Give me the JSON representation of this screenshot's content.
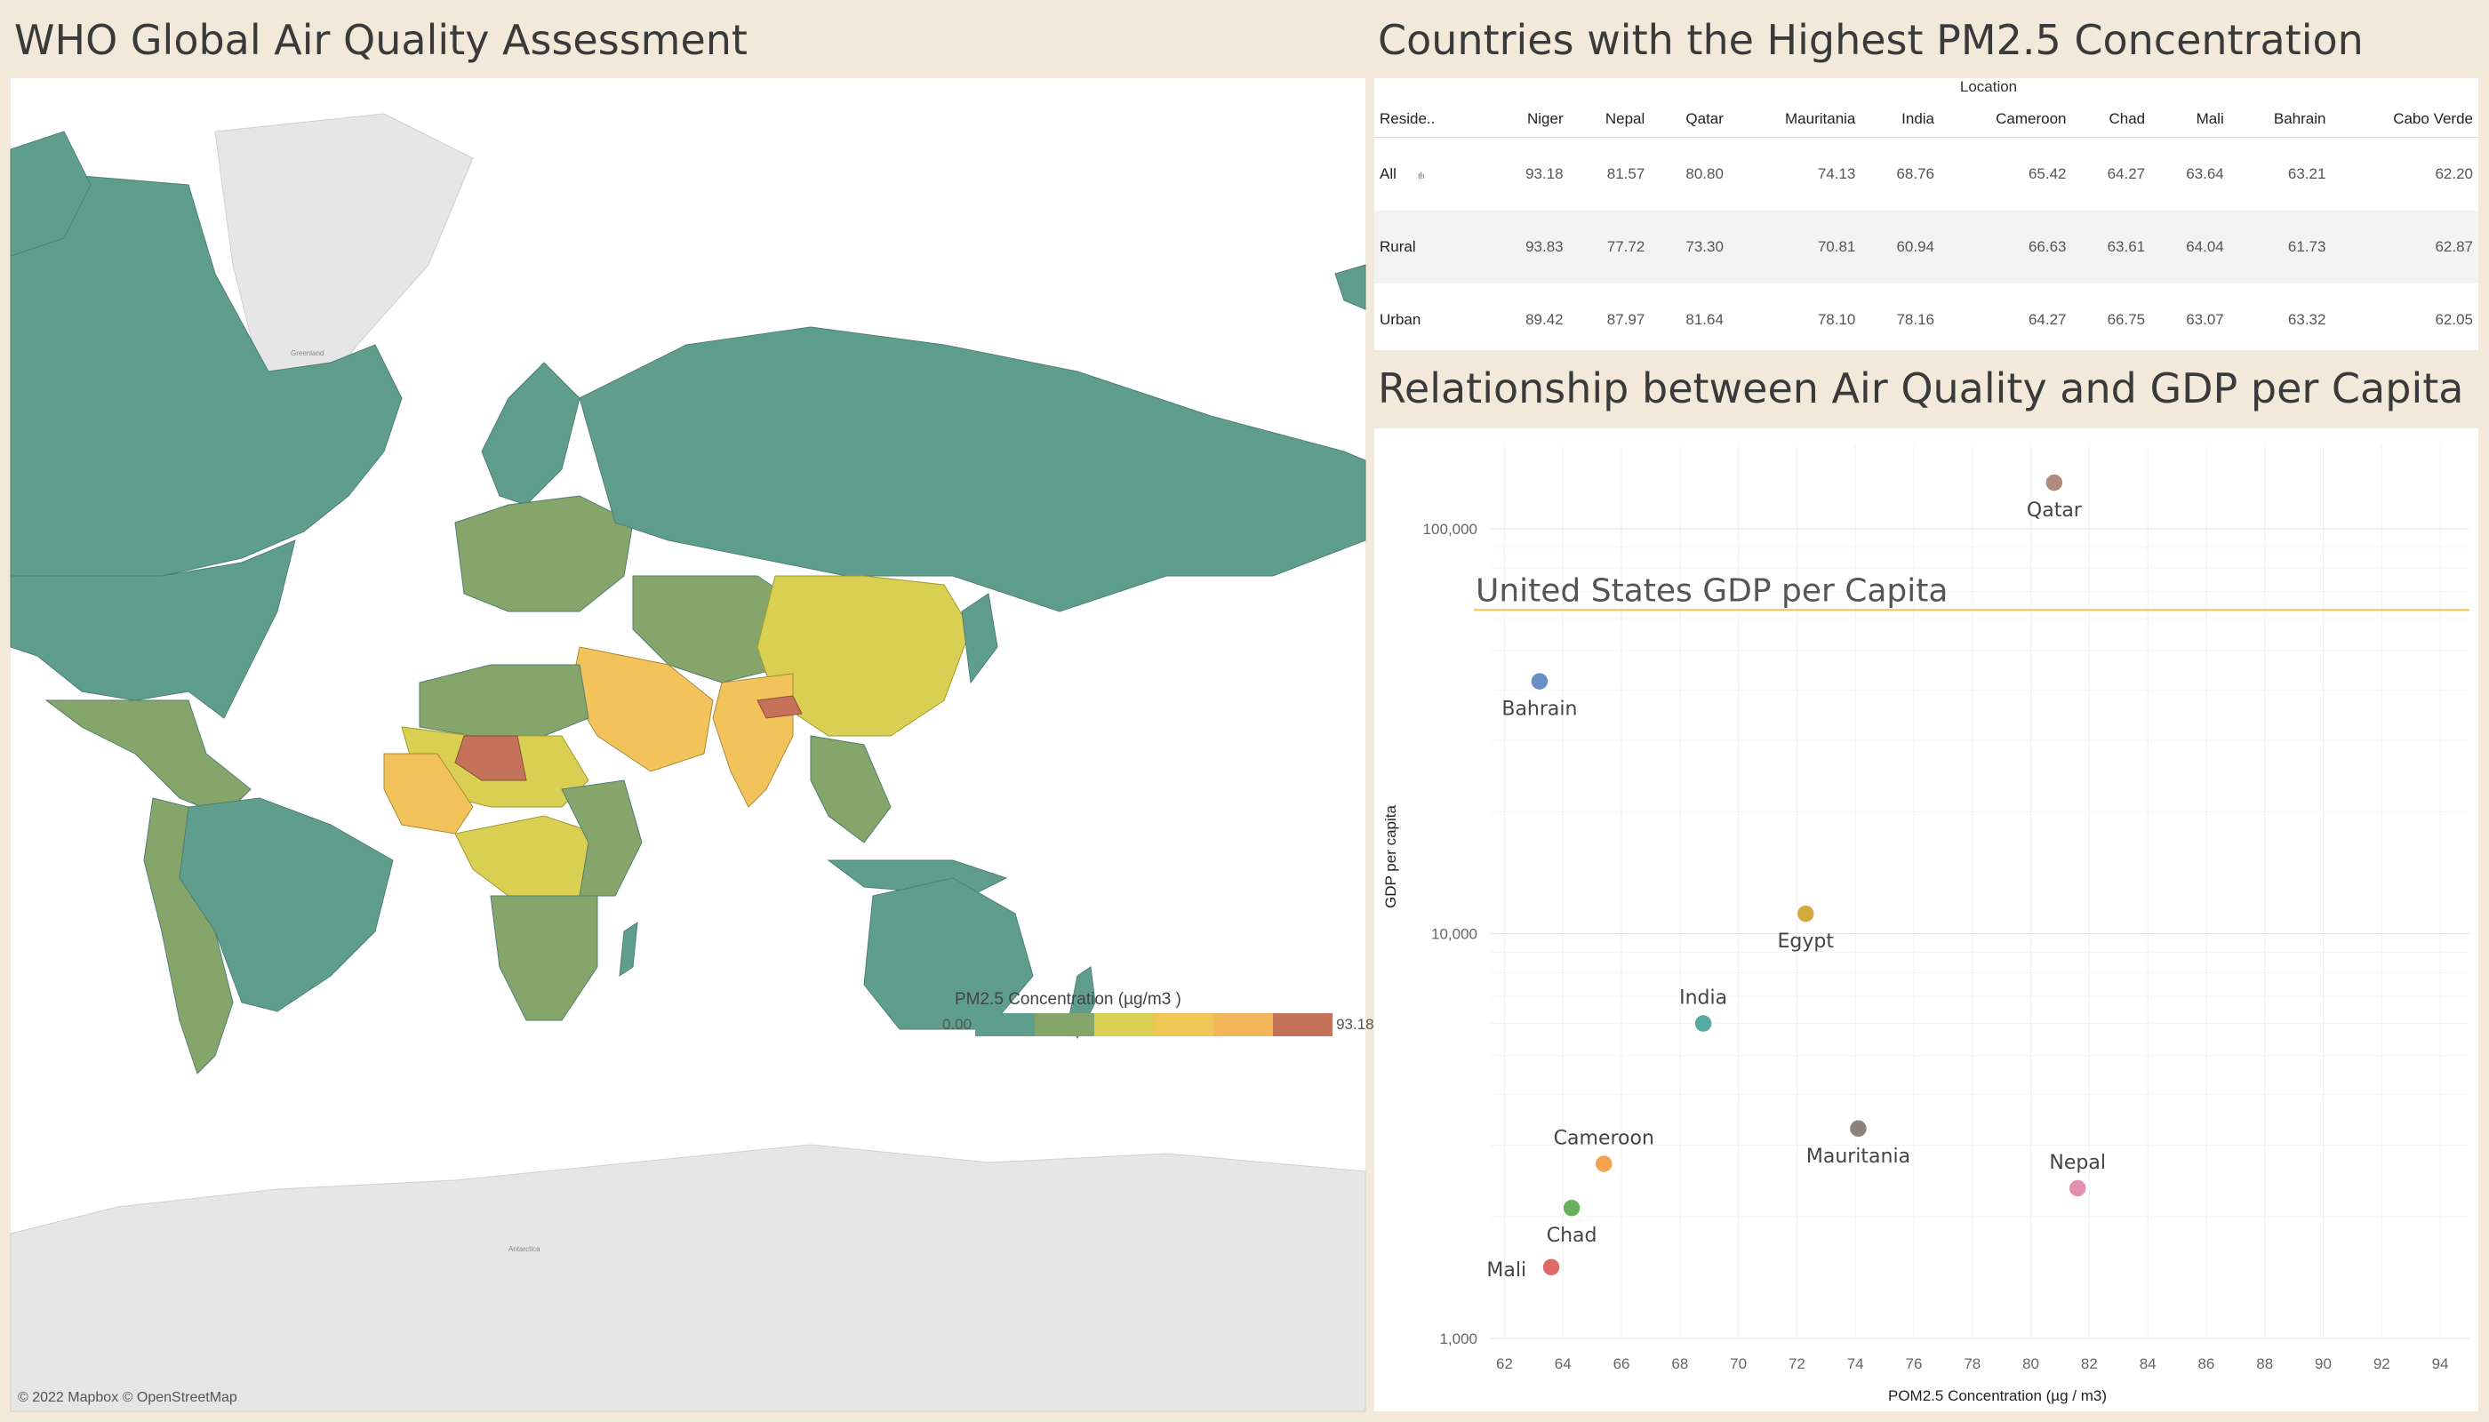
{
  "dashboard": {
    "map_title": "WHO Global Air Quality Assessment",
    "table_title": "Countries with the Highest PM2.5 Concentration",
    "scatter_title": "Relationship between Air Quality and GDP per Capita"
  },
  "map": {
    "attribution": "© 2022 Mapbox © OpenStreetMap",
    "label_greenland": "Greenland",
    "label_antarctica": "Antarctica",
    "legend": {
      "title": "PM2.5 Concentration (µg/m3 )",
      "min": "0.00",
      "max": "93.18",
      "colors": [
        "#5f9e8d",
        "#86a56a",
        "#d9cf52",
        "#f0c656",
        "#f4b65a",
        "#c4735a"
      ]
    },
    "colors": {
      "ocean": "#ffffff",
      "land_nodata": "#e6e6e6",
      "low": "#5f9e8d",
      "mid_low": "#86a56a",
      "mid": "#d9cf52",
      "mid_high": "#f2c35a",
      "high": "#c4735a"
    }
  },
  "table": {
    "column_group": "Location",
    "row_header": "Reside..",
    "columns": [
      "Niger",
      "Nepal",
      "Qatar",
      "Mauritania",
      "India",
      "Cameroon",
      "Chad",
      "Mali",
      "Bahrain",
      "Cabo Verde"
    ],
    "rows": [
      {
        "label": "All",
        "values": [
          "93.18",
          "81.57",
          "80.80",
          "74.13",
          "68.76",
          "65.42",
          "64.27",
          "63.64",
          "63.21",
          "62.20"
        ]
      },
      {
        "label": "Rural",
        "values": [
          "93.83",
          "77.72",
          "73.30",
          "70.81",
          "60.94",
          "66.63",
          "63.61",
          "64.04",
          "61.73",
          "62.87"
        ]
      },
      {
        "label": "Urban",
        "values": [
          "89.42",
          "87.97",
          "81.64",
          "78.10",
          "78.16",
          "64.27",
          "66.75",
          "63.07",
          "63.32",
          "62.05"
        ]
      }
    ]
  },
  "chart_data": {
    "type": "scatter",
    "title": "Relationship between Air Quality and GDP per Capita",
    "xlabel": "POM2.5 Concentration (µg / m3)",
    "ylabel": "GDP per capita",
    "xlim": [
      61.5,
      95
    ],
    "ylim": [
      1000,
      160000
    ],
    "yscale": "log",
    "xticks": [
      "62",
      "64",
      "66",
      "68",
      "70",
      "72",
      "74",
      "76",
      "78",
      "80",
      "82",
      "84",
      "86",
      "88",
      "90",
      "92",
      "94"
    ],
    "yticks": [
      {
        "value": 1000,
        "label": "1,000"
      },
      {
        "value": 10000,
        "label": "10,000"
      },
      {
        "value": 100000,
        "label": "100,000"
      }
    ],
    "grid": true,
    "reference_line": {
      "label": "United States GDP per Capita",
      "value": 63000,
      "color": "#e8c25a"
    },
    "points": [
      {
        "name": "Qatar",
        "x": 80.8,
        "y": 130000,
        "color": "#b08a7a",
        "label_pos": "below"
      },
      {
        "name": "Bahrain",
        "x": 63.2,
        "y": 42000,
        "color": "#6a8fc6",
        "label_pos": "below"
      },
      {
        "name": "Egypt",
        "x": 72.3,
        "y": 11200,
        "color": "#d4aa3e",
        "label_pos": "below"
      },
      {
        "name": "India",
        "x": 68.8,
        "y": 6000,
        "color": "#57aaa2",
        "label_pos": "above"
      },
      {
        "name": "Mauritania",
        "x": 74.1,
        "y": 3300,
        "color": "#8d817c",
        "label_pos": "below"
      },
      {
        "name": "Cameroon",
        "x": 65.4,
        "y": 2700,
        "color": "#f3a24d",
        "label_pos": "above"
      },
      {
        "name": "Nepal",
        "x": 81.6,
        "y": 2350,
        "color": "#e58fb0",
        "label_pos": "above"
      },
      {
        "name": "Chad",
        "x": 64.3,
        "y": 2100,
        "color": "#68b05d",
        "label_pos": "below"
      },
      {
        "name": "Mali",
        "x": 63.6,
        "y": 1500,
        "color": "#e06a6a",
        "label_pos": "left"
      }
    ]
  }
}
